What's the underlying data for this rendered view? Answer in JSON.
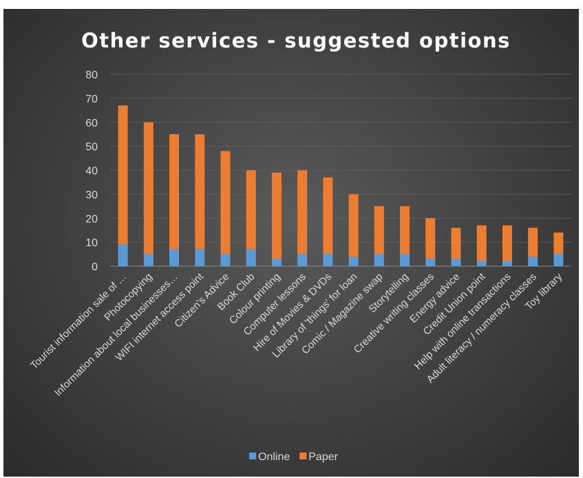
{
  "chart_data": {
    "type": "bar",
    "stacked": true,
    "title": "Other services - suggested options",
    "categories": [
      "Tourist information sale of …",
      "Photocopying",
      "Information about local businesses…",
      "WIFI internet access point",
      "Citizen's Advice",
      "Book Club",
      "Colour printing",
      "Computer lessons",
      "Hire of Movies & DVDs",
      "Library of 'things' for loan",
      "Comic / Magazine swap",
      "Storytelling",
      "Creative writing classes",
      "Energy advice",
      "Credit Union point",
      "Help with online transactions",
      "Adult literacy / numeracy classes",
      "Toy library"
    ],
    "series": [
      {
        "name": "Online",
        "color": "#5b9bd5",
        "values": [
          9,
          5,
          7,
          7,
          5,
          7,
          3,
          5,
          5,
          4,
          5,
          5,
          3,
          3,
          2,
          2,
          4,
          5
        ]
      },
      {
        "name": "Paper",
        "color": "#ed7d31",
        "values": [
          58,
          55,
          48,
          48,
          43,
          33,
          36,
          35,
          32,
          26,
          20,
          20,
          17,
          13,
          15,
          15,
          12,
          9
        ]
      }
    ],
    "ylim": [
      0,
      80
    ],
    "yticks": [
      0,
      10,
      20,
      30,
      40,
      50,
      60,
      70,
      80
    ],
    "grid": true,
    "legend": "bottom",
    "xlabel": "",
    "ylabel": ""
  }
}
